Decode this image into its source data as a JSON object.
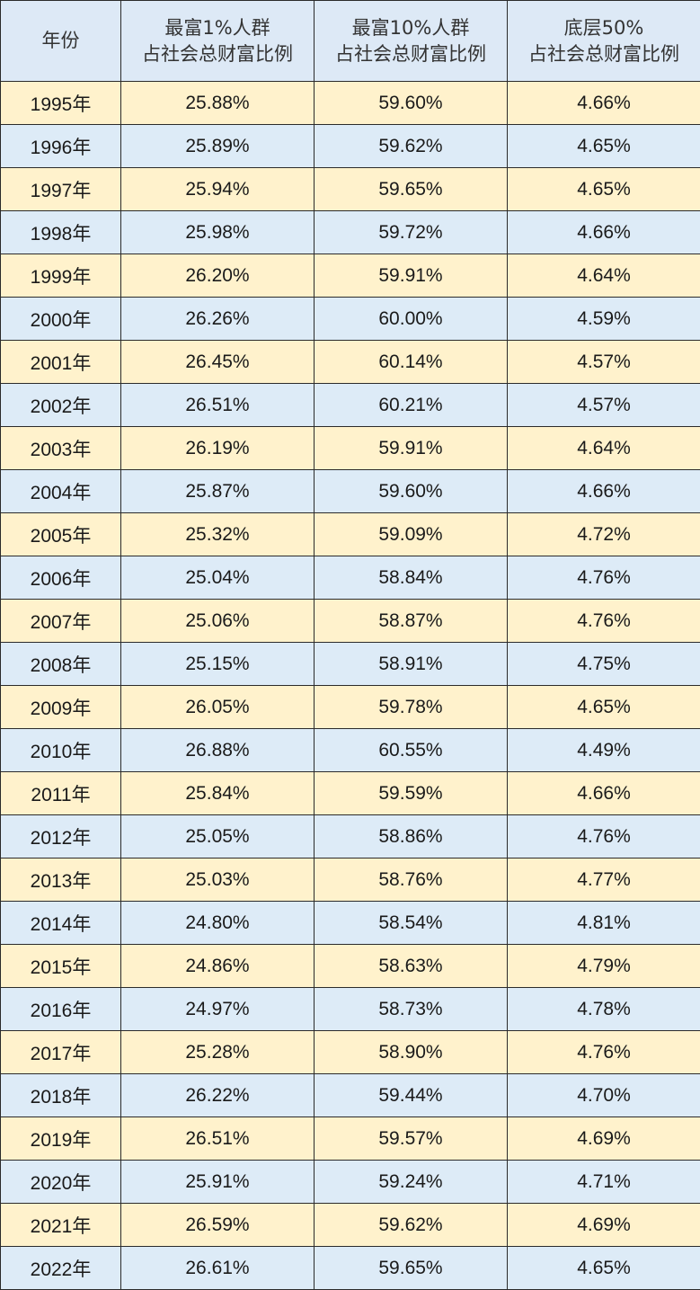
{
  "table": {
    "headers": [
      [
        "年份"
      ],
      [
        "最富1%人群",
        "占社会总财富比例"
      ],
      [
        "最富10%人群",
        "占社会总财富比例"
      ],
      [
        "底层50%",
        "占社会总财富比例"
      ]
    ],
    "rows": [
      [
        "1995年",
        "25.88%",
        "59.60%",
        "4.66%"
      ],
      [
        "1996年",
        "25.89%",
        "59.62%",
        "4.65%"
      ],
      [
        "1997年",
        "25.94%",
        "59.65%",
        "4.65%"
      ],
      [
        "1998年",
        "25.98%",
        "59.72%",
        "4.66%"
      ],
      [
        "1999年",
        "26.20%",
        "59.91%",
        "4.64%"
      ],
      [
        "2000年",
        "26.26%",
        "60.00%",
        "4.59%"
      ],
      [
        "2001年",
        "26.45%",
        "60.14%",
        "4.57%"
      ],
      [
        "2002年",
        "26.51%",
        "60.21%",
        "4.57%"
      ],
      [
        "2003年",
        "26.19%",
        "59.91%",
        "4.64%"
      ],
      [
        "2004年",
        "25.87%",
        "59.60%",
        "4.66%"
      ],
      [
        "2005年",
        "25.32%",
        "59.09%",
        "4.72%"
      ],
      [
        "2006年",
        "25.04%",
        "58.84%",
        "4.76%"
      ],
      [
        "2007年",
        "25.06%",
        "58.87%",
        "4.76%"
      ],
      [
        "2008年",
        "25.15%",
        "58.91%",
        "4.75%"
      ],
      [
        "2009年",
        "26.05%",
        "59.78%",
        "4.65%"
      ],
      [
        "2010年",
        "26.88%",
        "60.55%",
        "4.49%"
      ],
      [
        "2011年",
        "25.84%",
        "59.59%",
        "4.66%"
      ],
      [
        "2012年",
        "25.05%",
        "58.86%",
        "4.76%"
      ],
      [
        "2013年",
        "25.03%",
        "58.76%",
        "4.77%"
      ],
      [
        "2014年",
        "24.80%",
        "58.54%",
        "4.81%"
      ],
      [
        "2015年",
        "24.86%",
        "58.63%",
        "4.79%"
      ],
      [
        "2016年",
        "24.97%",
        "58.73%",
        "4.78%"
      ],
      [
        "2017年",
        "25.28%",
        "58.90%",
        "4.76%"
      ],
      [
        "2018年",
        "26.22%",
        "59.44%",
        "4.70%"
      ],
      [
        "2019年",
        "26.51%",
        "59.57%",
        "4.69%"
      ],
      [
        "2020年",
        "25.91%",
        "59.24%",
        "4.71%"
      ],
      [
        "2021年",
        "26.59%",
        "59.62%",
        "4.69%"
      ],
      [
        "2022年",
        "26.61%",
        "59.65%",
        "4.65%"
      ]
    ]
  },
  "colors": {
    "header_bg": "#dde9f6",
    "odd_row_bg": "#fff2cc",
    "even_row_bg": "#ddebf7",
    "border": "#2b2b2b"
  }
}
